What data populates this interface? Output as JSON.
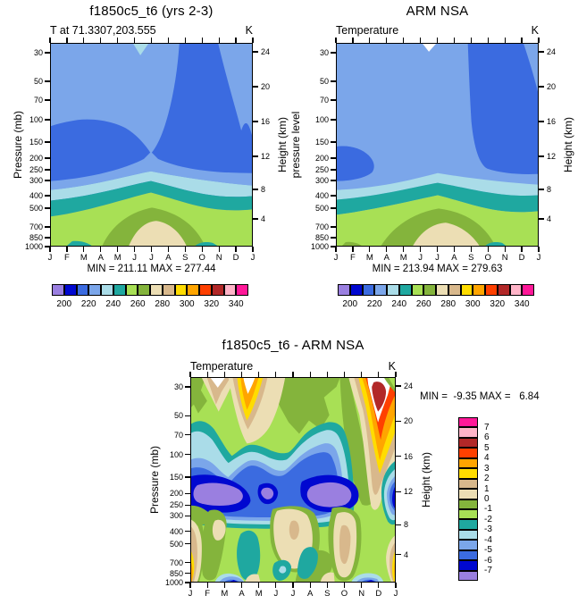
{
  "colors": {
    "palette": [
      "#9a7fe0",
      "#0008d0",
      "#3b6be0",
      "#7ba6ea",
      "#aadce8",
      "#1fa8a0",
      "#a8e055",
      "#84b43c",
      "#ecdeb4",
      "#d8b88c",
      "#ffdc00",
      "#ffa500",
      "#ff4000",
      "#b22828",
      "#ffb4c8",
      "#ff1898"
    ],
    "background": "#ffffff",
    "axis": "#000000"
  },
  "months": [
    "J",
    "F",
    "M",
    "A",
    "M",
    "J",
    "J",
    "A",
    "S",
    "O",
    "N",
    "D",
    "J"
  ],
  "pressure_ticks": [
    "30",
    "50",
    "70",
    "100",
    "150",
    "200",
    "250",
    "300",
    "400",
    "500",
    "700",
    "850",
    "1000"
  ],
  "height_ticks": [
    "24",
    "20",
    "16",
    "12",
    "8",
    "4"
  ],
  "top_colorbar_labels": [
    "200",
    "220",
    "240",
    "260",
    "280",
    "300",
    "320",
    "340"
  ],
  "panels": {
    "model": {
      "title": "f1850c5_t6 (yrs 2-3)",
      "subtitle": "T at 71.3307,203.555",
      "units": "K",
      "ylabel": "Pressure (mb)",
      "ylabel_right": "Height (km)",
      "stats": "MIN = 211.11 MAX = 277.44"
    },
    "obs": {
      "title": "ARM NSA",
      "subtitle": "Temperature",
      "units": "K",
      "ylabel": "pressure level",
      "ylabel_right": "Height (km)",
      "stats": "MIN = 213.94 MAX = 279.63"
    },
    "diff": {
      "title": "f1850c5_t6 - ARM NSA",
      "subtitle": "Temperature",
      "units": "K",
      "ylabel": "Pressure (mb)",
      "ylabel_right": "Height (km)",
      "stats": "MIN =  -9.35 MAX =   6.84",
      "colorbar_labels": [
        "7",
        "6",
        "5",
        "4",
        "3",
        "2",
        "1",
        "0",
        "-1",
        "-2",
        "-3",
        "-4",
        "-5",
        "-6",
        "-7"
      ]
    }
  },
  "chart_data": [
    {
      "type": "heatmap",
      "subtype": "filled-contour",
      "title": "f1850c5_t6 (yrs 2-3)",
      "field": "T at 71.3307,203.555",
      "units": "K",
      "xlabel": "month",
      "ylabel": "Pressure (mb)",
      "ylabel_right": "Height (km)",
      "x": [
        "J",
        "F",
        "M",
        "A",
        "M",
        "J",
        "J",
        "A",
        "S",
        "O",
        "N",
        "D",
        "J"
      ],
      "pressure_levels_mb": [
        30,
        50,
        70,
        100,
        150,
        200,
        250,
        300,
        400,
        500,
        700,
        850,
        1000
      ],
      "height_axis_km": [
        24,
        20,
        16,
        12,
        8,
        4
      ],
      "contour_levels": [
        200,
        210,
        220,
        230,
        240,
        250,
        260,
        270,
        280,
        290,
        300,
        310,
        320,
        330,
        340
      ],
      "min": 211.11,
      "max": 277.44,
      "values_estimated": [
        [
          224,
          226,
          227,
          228,
          230,
          233,
          230,
          227,
          219,
          216,
          217,
          222,
          224
        ],
        [
          225,
          226,
          227,
          228,
          229,
          231,
          229,
          227,
          220,
          216,
          214,
          221,
          225
        ],
        [
          224,
          225,
          226,
          227,
          228,
          229,
          229,
          227,
          221,
          216,
          213,
          218,
          224
        ],
        [
          222,
          224,
          225,
          226,
          227,
          228,
          228,
          227,
          222,
          217,
          213,
          214,
          222
        ],
        [
          219,
          221,
          223,
          225,
          226,
          227,
          227,
          226,
          222,
          217,
          213,
          212,
          219
        ],
        [
          216,
          217,
          219,
          222,
          224,
          226,
          226,
          225,
          222,
          217,
          212,
          211,
          216
        ],
        [
          215,
          216,
          217,
          220,
          223,
          227,
          228,
          227,
          224,
          219,
          216,
          214,
          215
        ],
        [
          218,
          219,
          220,
          223,
          227,
          231,
          233,
          232,
          228,
          223,
          220,
          218,
          218
        ],
        [
          228,
          228,
          229,
          232,
          236,
          240,
          242,
          241,
          237,
          232,
          229,
          228,
          228
        ],
        [
          238,
          238,
          239,
          242,
          246,
          250,
          252,
          251,
          247,
          242,
          239,
          238,
          238
        ],
        [
          251,
          250,
          252,
          256,
          260,
          264,
          266,
          265,
          261,
          256,
          252,
          251,
          251
        ],
        [
          256,
          255,
          257,
          262,
          267,
          271,
          273,
          272,
          268,
          262,
          257,
          255,
          256
        ],
        [
          258,
          257,
          259,
          265,
          271,
          275,
          277,
          276,
          271,
          265,
          259,
          256,
          258
        ]
      ],
      "legend_labels": [
        200,
        220,
        240,
        260,
        280,
        300,
        320,
        340
      ],
      "legend_position": "bottom",
      "grid": false
    },
    {
      "type": "heatmap",
      "subtype": "filled-contour",
      "title": "ARM NSA",
      "field": "Temperature",
      "units": "K",
      "xlabel": "month",
      "ylabel": "pressure level",
      "ylabel_right": "Height (km)",
      "x": [
        "J",
        "F",
        "M",
        "A",
        "M",
        "J",
        "J",
        "A",
        "S",
        "O",
        "N",
        "D",
        "J"
      ],
      "pressure_levels_mb": [
        30,
        50,
        70,
        100,
        150,
        200,
        250,
        300,
        400,
        500,
        700,
        850,
        1000
      ],
      "height_axis_km": [
        24,
        20,
        16,
        12,
        8,
        4
      ],
      "contour_levels": [
        200,
        210,
        220,
        230,
        240,
        250,
        260,
        270,
        280,
        290,
        300,
        310,
        320,
        330,
        340
      ],
      "min": 213.94,
      "max": 279.63,
      "values_estimated": [
        [
          228,
          228,
          228,
          229,
          230,
          231,
          230,
          228,
          225,
          222,
          218,
          217,
          226
        ],
        [
          227,
          227,
          228,
          228,
          229,
          230,
          229,
          228,
          224,
          220,
          216,
          215,
          224
        ],
        [
          225,
          226,
          227,
          227,
          228,
          229,
          229,
          228,
          224,
          219,
          215,
          214,
          222
        ],
        [
          223,
          224,
          226,
          227,
          227,
          228,
          228,
          227,
          224,
          220,
          216,
          214,
          219
        ],
        [
          221,
          222,
          224,
          226,
          227,
          227,
          227,
          227,
          224,
          221,
          217,
          215,
          218
        ],
        [
          219,
          220,
          222,
          225,
          226,
          227,
          227,
          227,
          225,
          222,
          219,
          217,
          218
        ],
        [
          218,
          219,
          221,
          224,
          227,
          229,
          230,
          229,
          227,
          224,
          221,
          219,
          218
        ],
        [
          220,
          221,
          223,
          226,
          229,
          233,
          235,
          234,
          230,
          226,
          222,
          220,
          220
        ],
        [
          227,
          228,
          230,
          233,
          237,
          241,
          243,
          242,
          238,
          233,
          229,
          227,
          227
        ],
        [
          236,
          237,
          239,
          243,
          247,
          251,
          253,
          252,
          248,
          242,
          238,
          236,
          236
        ],
        [
          249,
          251,
          254,
          258,
          262,
          266,
          268,
          267,
          262,
          256,
          251,
          249,
          249
        ],
        [
          254,
          256,
          259,
          264,
          269,
          273,
          275,
          274,
          269,
          262,
          256,
          254,
          254
        ],
        [
          256,
          258,
          261,
          267,
          273,
          277,
          279,
          278,
          272,
          265,
          258,
          255,
          256
        ]
      ],
      "legend_labels": [
        200,
        220,
        240,
        260,
        280,
        300,
        320,
        340
      ],
      "legend_position": "bottom",
      "grid": false
    },
    {
      "type": "heatmap",
      "subtype": "filled-contour-difference",
      "title": "f1850c5_t6 - ARM NSA",
      "field": "Temperature",
      "units": "K",
      "xlabel": "month",
      "ylabel": "Pressure (mb)",
      "ylabel_right": "Height (km)",
      "x": [
        "J",
        "F",
        "M",
        "A",
        "M",
        "J",
        "J",
        "A",
        "S",
        "O",
        "N",
        "D",
        "J"
      ],
      "pressure_levels_mb": [
        30,
        50,
        70,
        100,
        150,
        200,
        250,
        300,
        400,
        500,
        700,
        850,
        1000
      ],
      "height_axis_km": [
        24,
        20,
        16,
        12,
        8,
        4
      ],
      "contour_levels": [
        -7,
        -6,
        -5,
        -4,
        -3,
        -2,
        -1,
        0,
        1,
        2,
        3,
        4,
        5,
        6,
        7
      ],
      "min": -9.35,
      "max": 6.84,
      "values_estimated": [
        [
          -1.5,
          1.5,
          3.5,
          4.5,
          0.5,
          -0.5,
          -1,
          -0.5,
          -1.5,
          -2.5,
          4,
          6,
          -1.5
        ],
        [
          -1,
          0.5,
          2.5,
          3.5,
          0.5,
          -0.5,
          -1,
          -0.5,
          -1.5,
          -2,
          2.5,
          5,
          -1
        ],
        [
          -1,
          -2.5,
          -1,
          1.5,
          0,
          -0.5,
          -1.5,
          -1,
          -2,
          -3,
          0.5,
          3.5,
          -1
        ],
        [
          -2,
          -4,
          -3,
          -1,
          -2,
          -2.5,
          -2,
          -1.5,
          -3,
          -4.5,
          -2,
          1.5,
          -2
        ],
        [
          -4.5,
          -6.5,
          -5,
          -4.5,
          -5.5,
          -4,
          -3.5,
          -4,
          -6.5,
          -7,
          -5,
          -2.5,
          -4.5
        ],
        [
          -7.5,
          -8.5,
          -7,
          -7.5,
          -6.5,
          -5,
          -4.5,
          -6,
          -8.5,
          -9.4,
          -7.5,
          -4,
          -7.5
        ],
        [
          -4,
          -5,
          -4,
          -3.5,
          -3,
          -2.5,
          -2,
          -2.5,
          -4,
          -5,
          -4.5,
          -2.5,
          -4
        ],
        [
          -2.5,
          -2,
          -1,
          -0.5,
          -0.5,
          0.5,
          0.5,
          0.5,
          -0.5,
          -1.5,
          -2.5,
          -1.5,
          -2.5
        ],
        [
          3.5,
          0.5,
          -1,
          -2,
          -1.5,
          -0.5,
          0.5,
          1.5,
          0.5,
          1.5,
          -0.5,
          1.5,
          3.5
        ],
        [
          3,
          -0.5,
          -1.5,
          -2.5,
          -2,
          -1,
          0.5,
          1.5,
          0.5,
          1.5,
          -1,
          0.5,
          3
        ],
        [
          2.5,
          -1.5,
          -2,
          -2.5,
          -3,
          -1.5,
          -1,
          -2.5,
          -1,
          0.5,
          -1.5,
          0.5,
          2.5
        ],
        [
          3,
          -1,
          -2.5,
          -3.5,
          -2,
          -1.5,
          -2.5,
          -3,
          -1.5,
          0.5,
          -2,
          -0.5,
          3
        ],
        [
          4,
          -1.5,
          -4.5,
          -5.5,
          -2.5,
          -2,
          -1.5,
          -2.5,
          -1,
          -0.5,
          -5.5,
          -6.5,
          4
        ]
      ],
      "legend_labels": [
        7,
        6,
        5,
        4,
        3,
        2,
        1,
        0,
        -1,
        -2,
        -3,
        -4,
        -5,
        -6,
        -7
      ],
      "legend_position": "right",
      "grid": false
    }
  ]
}
